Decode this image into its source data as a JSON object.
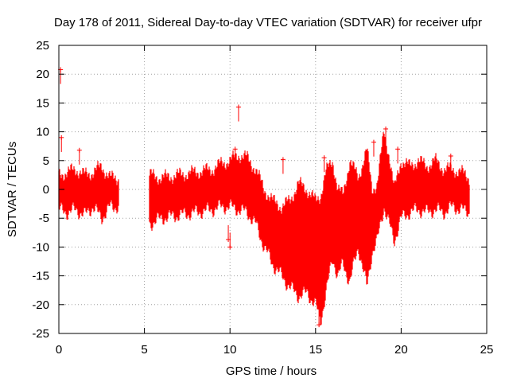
{
  "chart_data": {
    "type": "scatter",
    "title": "Day 178 of 2011, Sidereal Day-to-day VTEC variation (SDTVAR) for receiver ufpr",
    "xlabel": "GPS time / hours",
    "ylabel": "SDTVAR / TECUs",
    "xlim": [
      0,
      25
    ],
    "ylim": [
      -25,
      25
    ],
    "xticks": [
      0,
      5,
      10,
      15,
      20,
      25
    ],
    "yticks": [
      -25,
      -20,
      -15,
      -10,
      -5,
      0,
      5,
      10,
      15,
      20,
      25
    ],
    "grid": true,
    "legend": "none",
    "series_color": "#ff0000",
    "series": [
      {
        "name": "SDTVAR envelope",
        "x": [
          0.0,
          0.5,
          1.0,
          1.5,
          2.0,
          2.5,
          3.0,
          3.5,
          5.3,
          6.0,
          7.0,
          8.0,
          9.0,
          9.5,
          10.0,
          10.5,
          11.0,
          11.5,
          12.0,
          12.5,
          13.0,
          13.5,
          14.0,
          14.5,
          15.0,
          15.3,
          15.6,
          16.0,
          16.3,
          16.6,
          17.0,
          17.5,
          18.0,
          18.3,
          18.6,
          19.0,
          19.3,
          19.6,
          20.0,
          20.5,
          21.0,
          21.5,
          22.0,
          22.5,
          23.0,
          23.5,
          24.0
        ],
        "upper": [
          2.5,
          3.0,
          3.5,
          2.5,
          3.0,
          4.0,
          2.0,
          2.0,
          2.5,
          2.0,
          2.5,
          3.0,
          3.5,
          4.5,
          5.0,
          6.0,
          5.5,
          3.5,
          0.0,
          -2.0,
          -3.0,
          -2.0,
          1.0,
          0.0,
          -2.0,
          -1.0,
          3.0,
          5.0,
          0.0,
          -1.0,
          5.0,
          2.0,
          7.0,
          0.0,
          1.0,
          10.0,
          6.0,
          0.0,
          5.0,
          4.0,
          5.0,
          4.0,
          5.0,
          3.5,
          3.5,
          3.0,
          2.0
        ],
        "lower": [
          -3.5,
          -4.0,
          -3.5,
          -4.5,
          -3.0,
          -5.0,
          -3.0,
          -3.0,
          -6.0,
          -5.0,
          -4.5,
          -4.0,
          -3.5,
          -3.0,
          -3.0,
          -3.5,
          -4.0,
          -6.0,
          -10.0,
          -13.0,
          -15.0,
          -17.0,
          -18.5,
          -18.0,
          -20.0,
          -23.0,
          -18.0,
          -12.0,
          -15.0,
          -13.0,
          -16.0,
          -10.0,
          -17.0,
          -11.0,
          -9.0,
          -3.0,
          -6.0,
          -9.0,
          -5.0,
          -4.0,
          -3.5,
          -4.0,
          -3.5,
          -4.0,
          -3.0,
          -3.5,
          -4.0
        ]
      }
    ],
    "outliers": [
      {
        "x": 0.1,
        "y": 20.8
      },
      {
        "x": 0.15,
        "y": 9.0
      },
      {
        "x": 1.2,
        "y": 6.8
      },
      {
        "x": 9.9,
        "y": -8.7
      },
      {
        "x": 10.0,
        "y": -10.0
      },
      {
        "x": 10.5,
        "y": 14.3
      },
      {
        "x": 10.3,
        "y": 7.0
      },
      {
        "x": 13.1,
        "y": 5.2
      },
      {
        "x": 15.5,
        "y": 5.5
      },
      {
        "x": 19.1,
        "y": 10.5
      },
      {
        "x": 19.8,
        "y": 7.0
      },
      {
        "x": 22.9,
        "y": 5.8
      },
      {
        "x": 18.4,
        "y": 8.2
      },
      {
        "x": 15.2,
        "y": -23.5
      }
    ]
  }
}
